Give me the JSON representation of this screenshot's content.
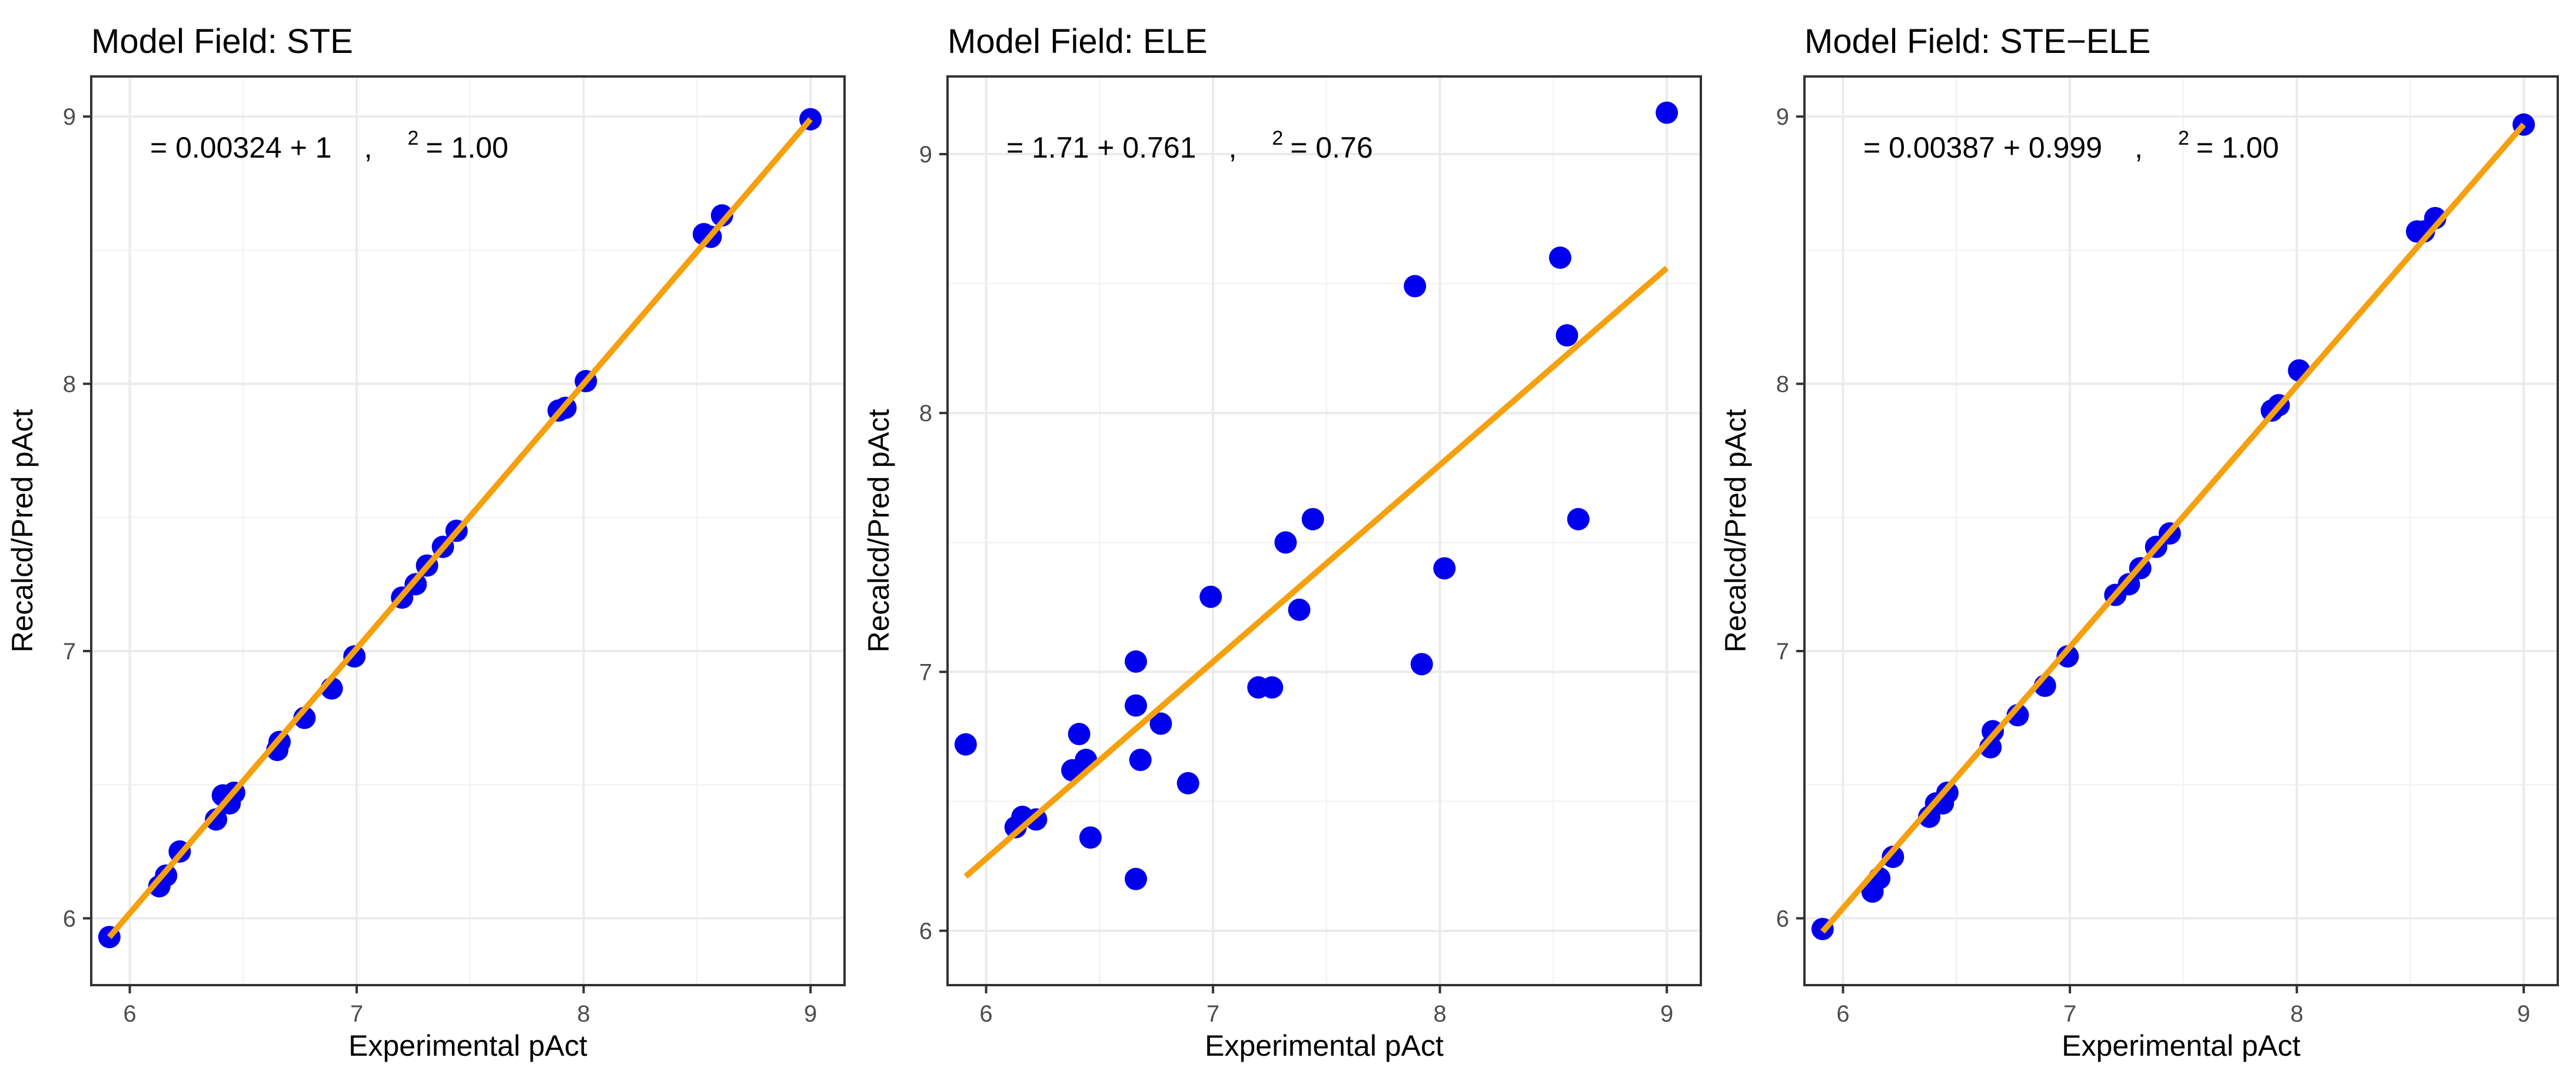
{
  "chart_data": [
    {
      "type": "scatter",
      "title": "Model Field: STE",
      "xlabel": "Experimental pAct",
      "ylabel": "Recalcd/Pred pAct",
      "xlim": [
        5.83,
        9.15
      ],
      "ylim": [
        5.75,
        9.15
      ],
      "xticks": [
        6,
        7,
        8,
        9
      ],
      "yticks": [
        6,
        7,
        8,
        9
      ],
      "grid": true,
      "equation": {
        "prefix": "= 0.00324 + 1",
        "sep": ",",
        "sup": "2",
        "suffix": "= 1.00"
      },
      "point_color": "#0000ee",
      "fit_color": "#f5a00f",
      "fit_line": {
        "x": [
          5.91,
          9.0
        ],
        "y": [
          5.93,
          8.99
        ]
      },
      "points": {
        "x": [
          5.91,
          6.13,
          6.16,
          6.22,
          6.38,
          6.41,
          6.44,
          6.46,
          6.65,
          6.66,
          6.77,
          6.89,
          6.99,
          7.2,
          7.26,
          7.31,
          7.38,
          7.44,
          7.89,
          7.92,
          8.01,
          8.53,
          8.56,
          8.61,
          9.0
        ],
        "y": [
          5.93,
          6.12,
          6.16,
          6.25,
          6.37,
          6.46,
          6.43,
          6.47,
          6.63,
          6.66,
          6.75,
          6.86,
          6.98,
          7.2,
          7.25,
          7.32,
          7.39,
          7.45,
          7.9,
          7.91,
          8.01,
          8.56,
          8.55,
          8.63,
          8.99
        ]
      }
    },
    {
      "type": "scatter",
      "title": "Model Field: ELE",
      "xlabel": "Experimental pAct",
      "ylabel": "Recalcd/Pred pAct",
      "xlim": [
        5.83,
        9.15
      ],
      "ylim": [
        5.79,
        9.3
      ],
      "xticks": [
        6,
        7,
        8,
        9
      ],
      "yticks": [
        6,
        7,
        8,
        9
      ],
      "grid": true,
      "equation": {
        "prefix": "= 1.71 + 0.761",
        "sep": ",",
        "sup": "2",
        "suffix": "= 0.76"
      },
      "point_color": "#0000ee",
      "fit_color": "#f5a00f",
      "fit_line": {
        "x": [
          5.91,
          9.0
        ],
        "y": [
          6.21,
          8.56
        ]
      },
      "points": {
        "x": [
          5.91,
          6.13,
          6.16,
          6.22,
          6.38,
          6.41,
          6.44,
          6.46,
          6.66,
          6.66,
          6.66,
          6.68,
          6.77,
          6.89,
          6.99,
          7.2,
          7.26,
          7.32,
          7.38,
          7.44,
          7.89,
          7.92,
          8.02,
          8.53,
          8.56,
          8.61,
          9.0
        ],
        "y": [
          6.72,
          6.4,
          6.44,
          6.43,
          6.62,
          6.76,
          6.66,
          6.36,
          7.04,
          6.87,
          6.2,
          6.66,
          6.8,
          6.57,
          7.29,
          6.94,
          6.94,
          7.5,
          7.24,
          7.59,
          8.49,
          7.03,
          7.4,
          8.6,
          8.3,
          7.59,
          9.16
        ]
      }
    },
    {
      "type": "scatter",
      "title": "Model Field: STE−ELE",
      "xlabel": "Experimental pAct",
      "ylabel": "Recalcd/Pred pAct",
      "xlim": [
        5.83,
        9.15
      ],
      "ylim": [
        5.75,
        9.15
      ],
      "xticks": [
        6,
        7,
        8,
        9
      ],
      "yticks": [
        6,
        7,
        8,
        9
      ],
      "grid": true,
      "equation": {
        "prefix": "= 0.00387 + 0.999",
        "sep": ",",
        "sup": "2",
        "suffix": "= 1.00"
      },
      "point_color": "#0000ee",
      "fit_color": "#f5a00f",
      "fit_line": {
        "x": [
          5.91,
          9.0
        ],
        "y": [
          5.95,
          8.97
        ]
      },
      "points": {
        "x": [
          5.91,
          6.13,
          6.16,
          6.22,
          6.38,
          6.41,
          6.44,
          6.46,
          6.65,
          6.66,
          6.77,
          6.89,
          6.99,
          7.2,
          7.26,
          7.31,
          7.38,
          7.44,
          7.89,
          7.92,
          8.01,
          8.53,
          8.56,
          8.61,
          9.0
        ],
        "y": [
          5.96,
          6.1,
          6.15,
          6.23,
          6.38,
          6.43,
          6.43,
          6.47,
          6.64,
          6.7,
          6.76,
          6.87,
          6.98,
          7.21,
          7.25,
          7.31,
          7.39,
          7.44,
          7.9,
          7.92,
          8.05,
          8.57,
          8.57,
          8.62,
          8.97
        ]
      }
    }
  ]
}
